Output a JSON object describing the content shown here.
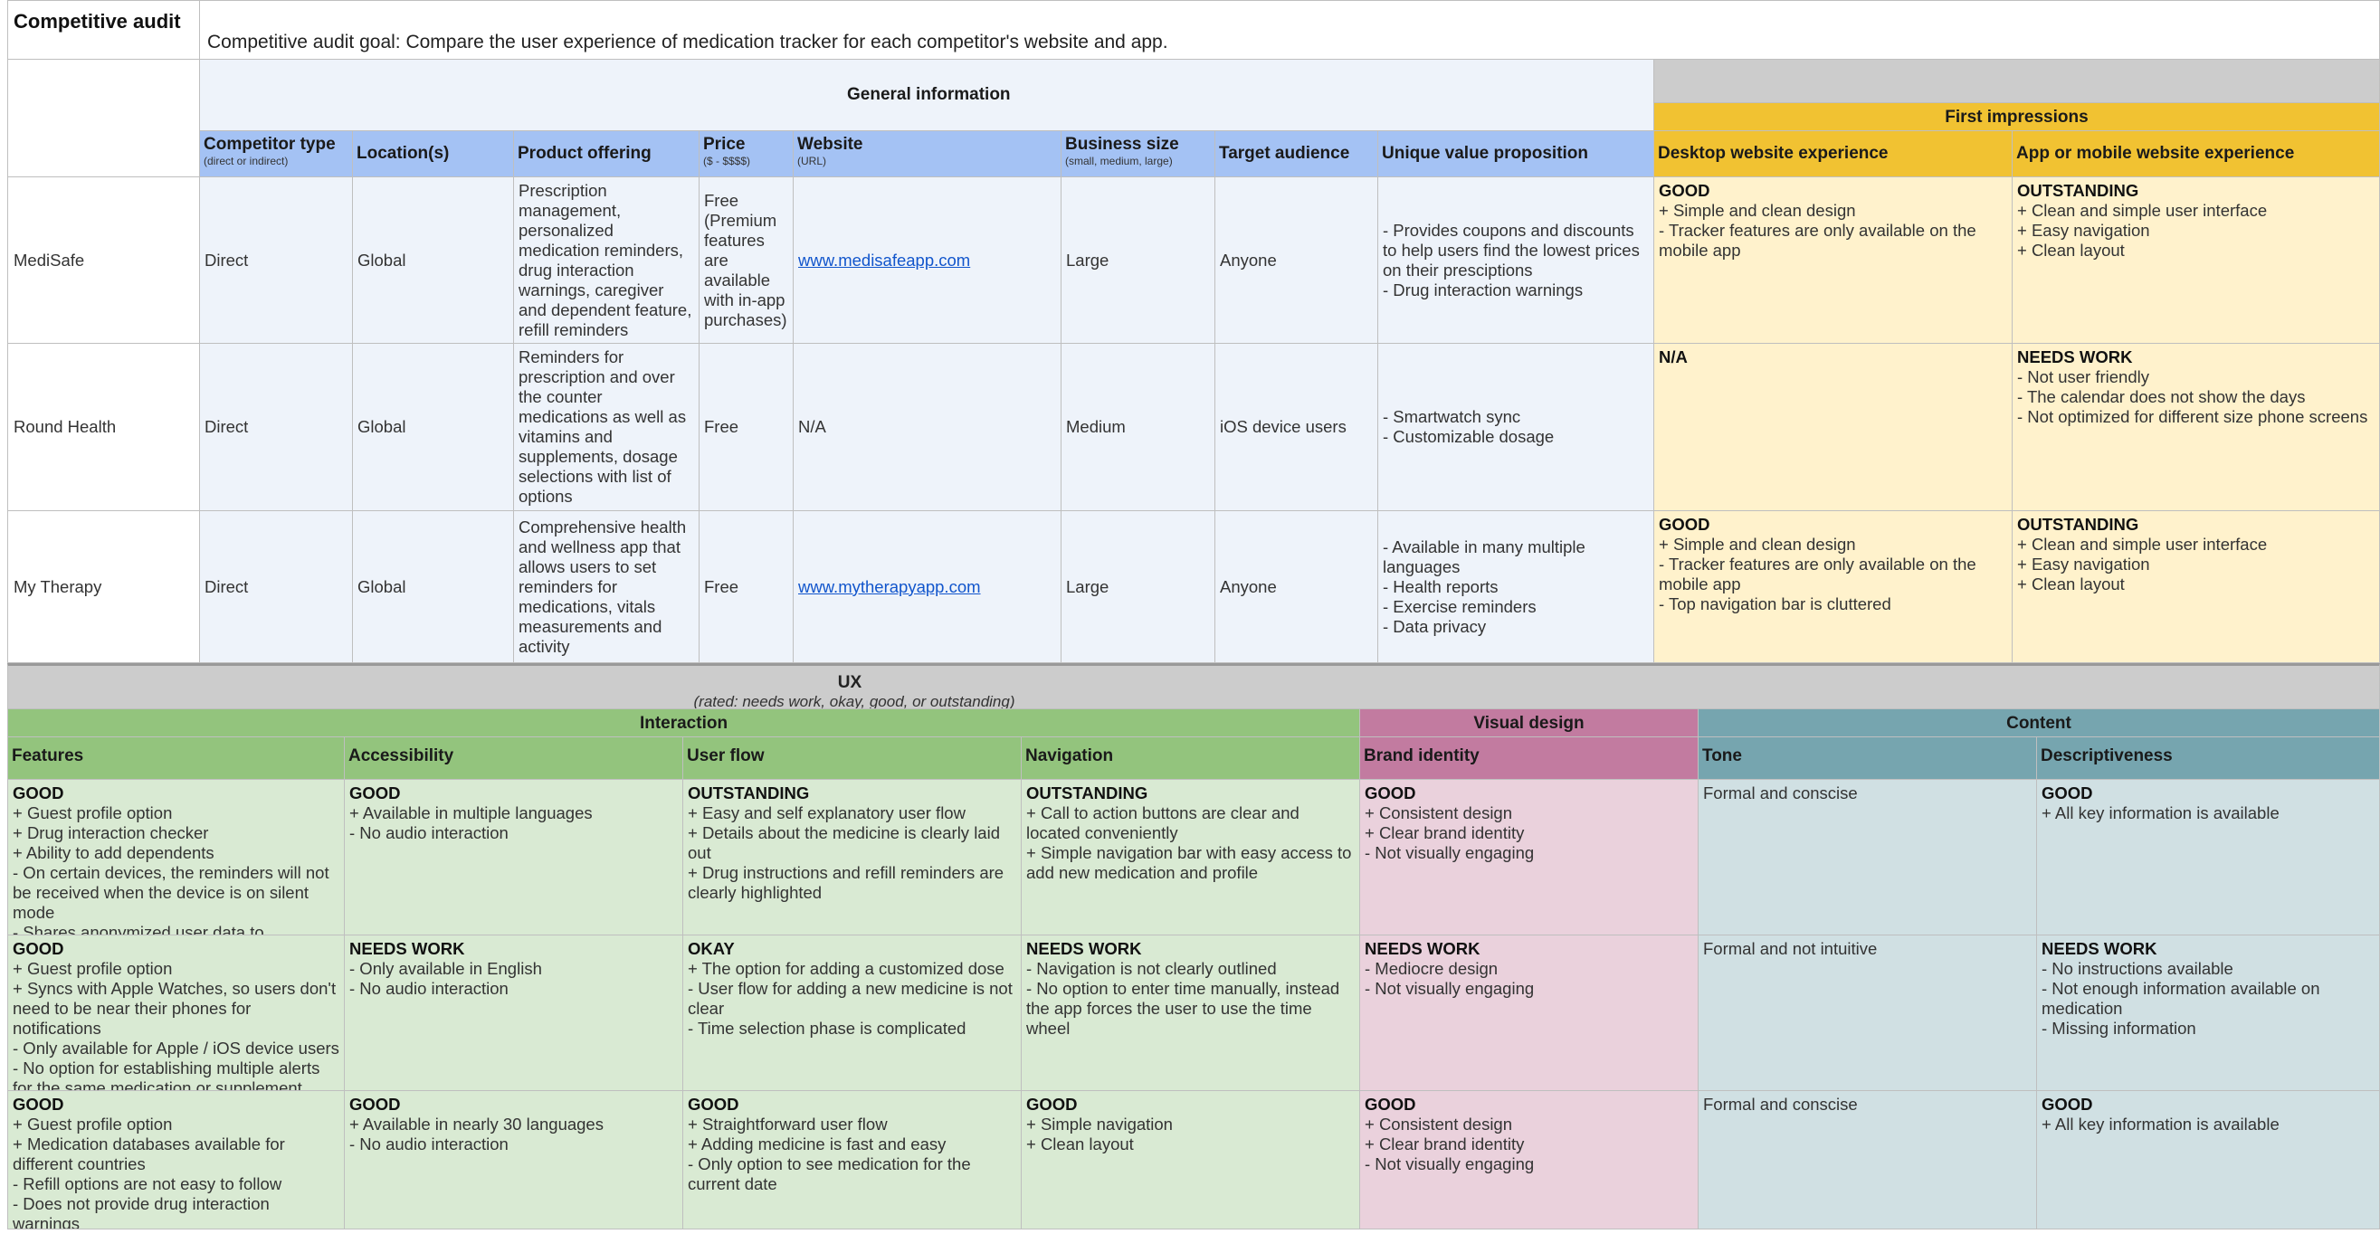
{
  "sheet": {
    "title": "Competitive audit",
    "goal": "Competitive audit goal: Compare the user experience of medication tracker for each competitor's website and app."
  },
  "general": {
    "section_label": "General information",
    "first_impressions_label": "First impressions",
    "columns": [
      {
        "label": "Competitor type",
        "sub": "(direct or indirect)"
      },
      {
        "label": "Location(s)",
        "sub": ""
      },
      {
        "label": "Product offering",
        "sub": ""
      },
      {
        "label": "Price",
        "sub": "($ - $$$$)"
      },
      {
        "label": "Website",
        "sub": "(URL)"
      },
      {
        "label": "Business size",
        "sub": "(small, medium, large)"
      },
      {
        "label": "Target audience",
        "sub": ""
      },
      {
        "label": "Unique value proposition",
        "sub": ""
      },
      {
        "label": "Desktop website experience",
        "sub": ""
      },
      {
        "label": "App or mobile website experience",
        "sub": ""
      }
    ],
    "rows": [
      {
        "name": "MediSafe",
        "type": "Direct",
        "location": "Global",
        "offering": "Prescription management, personalized medication reminders, drug interaction warnings, caregiver and dependent feature, refill reminders",
        "price": "Free (Premium features are available with in-app purchases)",
        "website": "www.medisafeapp.com",
        "size": "Large",
        "audience": "Anyone",
        "uvp": "- Provides coupons and discounts to help users find the lowest prices on their presciptions\n- Drug interaction warnings",
        "desktop_rating": "GOOD",
        "desktop": "+ Simple and clean design\n- Tracker features are only available on the mobile app",
        "app_rating": "OUTSTANDING",
        "app": "+ Clean and simple user interface\n+ Easy navigation\n+ Clean layout"
      },
      {
        "name": "Round Health",
        "type": "Direct",
        "location": "Global",
        "offering": "Reminders for prescription and over the counter medications as well as vitamins and supplements, dosage selections with list of options",
        "price": "Free",
        "website": "N/A",
        "size": "Medium",
        "audience": "iOS device users",
        "uvp": "- Smartwatch sync\n- Customizable dosage",
        "desktop_rating": "N/A",
        "desktop": "",
        "app_rating": "NEEDS WORK",
        "app": "- Not user friendly\n- The calendar does not show the days\n- Not optimized for different size phone screens"
      },
      {
        "name": "My Therapy",
        "type": "Direct",
        "location": "Global",
        "offering": "Comprehensive health and wellness app that allows users to set reminders for medications, vitals measurements and activity",
        "price": "Free",
        "website": "www.mytherapyapp.com",
        "size": "Large",
        "audience": "Anyone",
        "uvp": "- Available in many multiple languages\n- Health reports\n- Exercise reminders\n- Data privacy",
        "desktop_rating": "GOOD",
        "desktop": "+ Simple and clean design\n- Tracker features are only available on the mobile app\n- Top navigation bar is cluttered",
        "app_rating": "OUTSTANDING",
        "app": "+ Clean and simple user interface\n+ Easy navigation\n+ Clean layout"
      }
    ]
  },
  "ux": {
    "title": "UX",
    "subtitle": "(rated: needs work, okay, good, or outstanding)",
    "groups": {
      "interaction": "Interaction",
      "visual": "Visual design",
      "content": "Content"
    },
    "columns": [
      "Features",
      "Accessibility",
      "User flow",
      "Navigation",
      "Brand identity",
      "Tone",
      "Descriptiveness"
    ],
    "rows": [
      [
        {
          "rating": "GOOD",
          "text": "+ Guest profile option\n+ Drug interaction checker\n+ Ability to add dependents\n- On certain devices, the reminders will not be received when the device is on silent mode\n- Shares anonymized user data to healthcare companies"
        },
        {
          "rating": "GOOD",
          "text": "+ Available in multiple languages\n- No audio interaction"
        },
        {
          "rating": "OUTSTANDING",
          "text": "+ Easy and self explanatory user flow\n+ Details about the medicine is clearly laid out\n+ Drug instructions and refill reminders are clearly highlighted"
        },
        {
          "rating": "OUTSTANDING",
          "text": "+ Call to action buttons are clear and located conveniently\n+ Simple navigation bar with easy access to add new medication and profile"
        },
        {
          "rating": "GOOD",
          "text": "+ Consistent design\n+ Clear brand identity\n- Not visually engaging"
        },
        {
          "rating": "",
          "text": "Formal and conscise"
        },
        {
          "rating": "GOOD",
          "text": "+ All key information is available"
        }
      ],
      [
        {
          "rating": "GOOD",
          "text": "+ Guest profile option\n+ Syncs with Apple Watches, so users don't need to be near their phones for notifications\n- Only available for Apple / iOS device users\n- No option for establishing multiple alerts for the same medication or supplement"
        },
        {
          "rating": "NEEDS WORK",
          "text": "- Only available in English\n- No audio interaction"
        },
        {
          "rating": "OKAY",
          "text": "+ The option for adding a customized dose\n- User flow for adding a new medicine is not clear\n- Time selection phase is complicated"
        },
        {
          "rating": "NEEDS WORK",
          "text": "- Navigation is not clearly outlined\n- No option to enter time manually, instead the app forces the user to use the time wheel"
        },
        {
          "rating": "NEEDS WORK",
          "text": "- Mediocre design\n- Not visually engaging"
        },
        {
          "rating": "",
          "text": "Formal and not intuitive"
        },
        {
          "rating": "NEEDS WORK",
          "text": "- No instructions available\n- Not enough information available on medication\n- Missing information"
        }
      ],
      [
        {
          "rating": "GOOD",
          "text": "+ Guest profile option\n+ Medication databases available for different countries\n- Refill options are not easy to follow\n- Does not provide drug interaction warnings"
        },
        {
          "rating": "GOOD",
          "text": "+ Available in nearly 30 languages\n- No audio interaction"
        },
        {
          "rating": "GOOD",
          "text": "+ Straightforward user flow\n+ Adding medicine is fast and easy\n- Only option to see medication for the current date"
        },
        {
          "rating": "GOOD",
          "text": "+ Simple navigation\n+ Clean layout"
        },
        {
          "rating": "GOOD",
          "text": "+ Consistent design\n+ Clear brand identity\n- Not visually engaging"
        },
        {
          "rating": "",
          "text": "Formal and conscise"
        },
        {
          "rating": "GOOD",
          "text": "+ All key information is available"
        }
      ]
    ]
  }
}
